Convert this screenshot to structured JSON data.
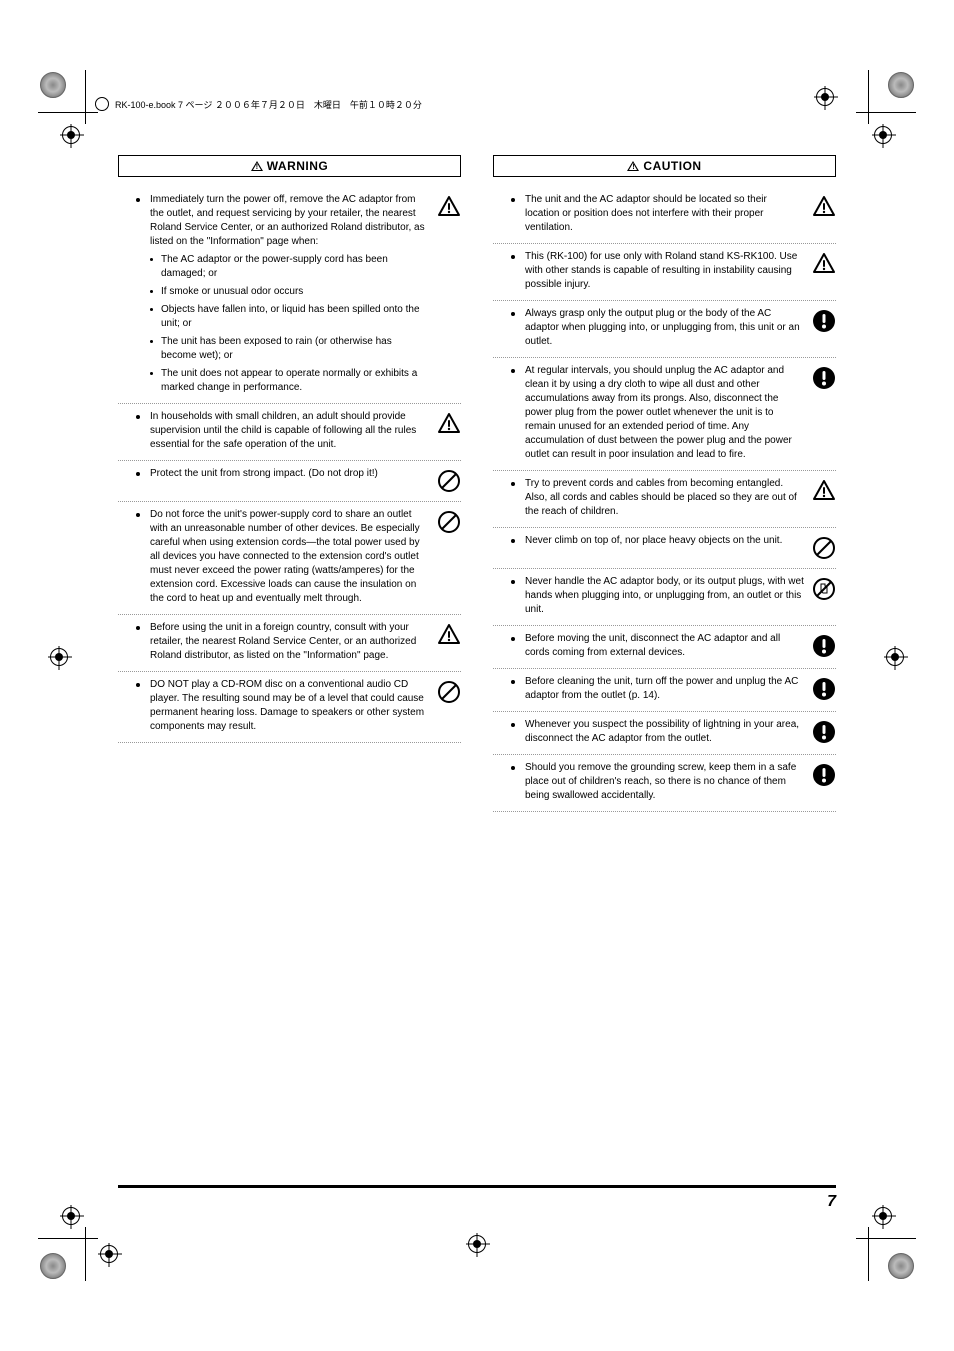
{
  "header": {
    "text": "RK-100-e.book  7 ページ  ２００６年７月２０日　木曜日　午前１０時２０分"
  },
  "page_number": "7",
  "warning": {
    "title": "WARNING",
    "items": [
      {
        "text": "Immediately turn the power off, remove the AC adaptor from the outlet, and request servicing by your retailer, the nearest Roland Service Center, or an authorized Roland distributor, as listed on the \"Information\" page when:",
        "icon": "warning",
        "subs": [
          "The AC adaptor or the power-supply cord has been damaged; or",
          "If smoke or unusual odor occurs",
          "Objects have fallen into, or liquid has been spilled onto the unit; or",
          "The unit has been exposed to rain (or otherwise has become wet); or",
          "The unit does not appear to operate normally or exhibits a marked change in performance."
        ]
      },
      {
        "text": "In households with small children, an adult should provide supervision until the child is capable of following all the rules essential for the safe operation of the unit.",
        "icon": "warning"
      },
      {
        "text": "Protect the unit from strong impact.\n(Do not drop it!)",
        "icon": "prohibit"
      },
      {
        "text": "Do not force the unit's power-supply cord to share an outlet with an unreasonable number of other devices. Be especially careful when using extension cords—the total power used by all devices you have connected to the extension cord's outlet must never exceed the power rating (watts/amperes) for the extension cord. Excessive loads can cause the insulation on the cord to heat up and eventually melt through.",
        "icon": "prohibit"
      },
      {
        "text": "Before using the unit in a foreign country, consult with your retailer, the nearest Roland Service Center, or an authorized Roland distributor, as listed on the \"Information\" page.",
        "icon": "warning"
      },
      {
        "text": "DO NOT play a CD-ROM disc on a conventional audio CD player. The resulting sound may be of a level that could cause permanent hearing loss. Damage to speakers or other system components may result.",
        "icon": "prohibit"
      }
    ]
  },
  "caution": {
    "title": "CAUTION",
    "items": [
      {
        "text": "The unit and the AC adaptor should be located so their location or position does not interfere with their proper ventilation.",
        "icon": "warning"
      },
      {
        "text": "This (RK-100) for use only with Roland stand KS-RK100. Use with other stands is capable of resulting in instability causing possible injury.",
        "icon": "warning"
      },
      {
        "text": "Always grasp only the output plug or the body of the AC adaptor when plugging into, or unplugging from, this unit or an outlet.",
        "icon": "mandatory"
      },
      {
        "text": "At regular intervals, you should unplug the AC adaptor and clean it by using a dry cloth to wipe all dust and other accumulations away from its prongs. Also, disconnect the power plug from the power outlet whenever the unit is to remain unused for an extended period of time. Any accumulation of dust between the power plug and the power outlet can result in poor insulation and lead to fire.",
        "icon": "mandatory"
      },
      {
        "text": "Try to prevent cords and cables from becoming entangled. Also, all cords and cables should be placed so they are out of the reach of children.",
        "icon": "warning"
      },
      {
        "text": "Never climb on top of, nor place heavy objects on the unit.",
        "icon": "prohibit"
      },
      {
        "text": "Never handle the AC adaptor body, or its output plugs, with wet hands when plugging into, or unplugging from, an outlet or this unit.",
        "icon": "prohibit-hand"
      },
      {
        "text": "Before moving the unit, disconnect the AC adaptor and all cords coming from external devices.",
        "icon": "mandatory"
      },
      {
        "text": "Before cleaning the unit, turn off the power and unplug the AC adaptor from the outlet (p. 14).",
        "icon": "mandatory"
      },
      {
        "text": "Whenever you suspect the possibility of lightning in your area, disconnect the AC adaptor from the outlet.",
        "icon": "mandatory"
      },
      {
        "text": "Should you remove the grounding screw, keep them in a safe place out of children's reach, so there is no chance of them being swallowed accidentally.",
        "icon": "mandatory"
      }
    ]
  }
}
